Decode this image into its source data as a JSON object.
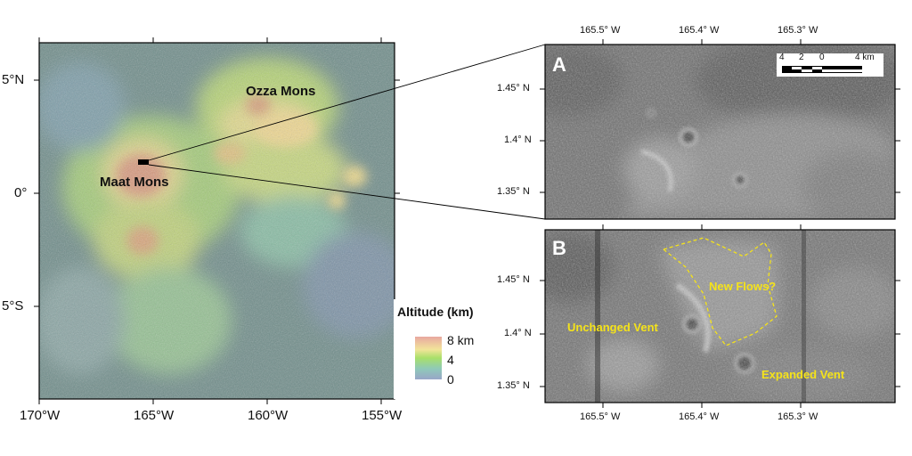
{
  "main_map": {
    "x_ticks": [
      "170°W",
      "165°W",
      "160°W",
      "155°W"
    ],
    "y_ticks": [
      "5°N",
      "0°",
      "5°S"
    ],
    "labels": {
      "ozza": "Ozza Mons",
      "maat": "Maat Mons"
    },
    "legend": {
      "title": "Altitude (km)",
      "levels": [
        "8 km",
        "4",
        "0"
      ],
      "colors": [
        "#e8a8a0",
        "#f2e49a",
        "#a8e06a",
        "#8fc9b8",
        "#98a6c8"
      ]
    }
  },
  "panel_a": {
    "letter": "A",
    "x_ticks": [
      "165.5° W",
      "165.4° W",
      "165.3° W"
    ],
    "y_ticks": [
      "1.45° N",
      "1.4° N",
      "1.35° N"
    ],
    "scale_bar": {
      "ticks": [
        "4",
        "2",
        "0",
        "4 km"
      ]
    }
  },
  "panel_b": {
    "letter": "B",
    "x_ticks": [
      "165.5° W",
      "165.4° W",
      "165.3° W"
    ],
    "y_ticks": [
      "1.45° N",
      "1.4° N",
      "1.35° N"
    ],
    "annotations": {
      "new_flows": "New Flows?",
      "unchanged": "Unchanged Vent",
      "expanded": "Expanded Vent"
    },
    "annotation_color": "#f5e31a"
  }
}
